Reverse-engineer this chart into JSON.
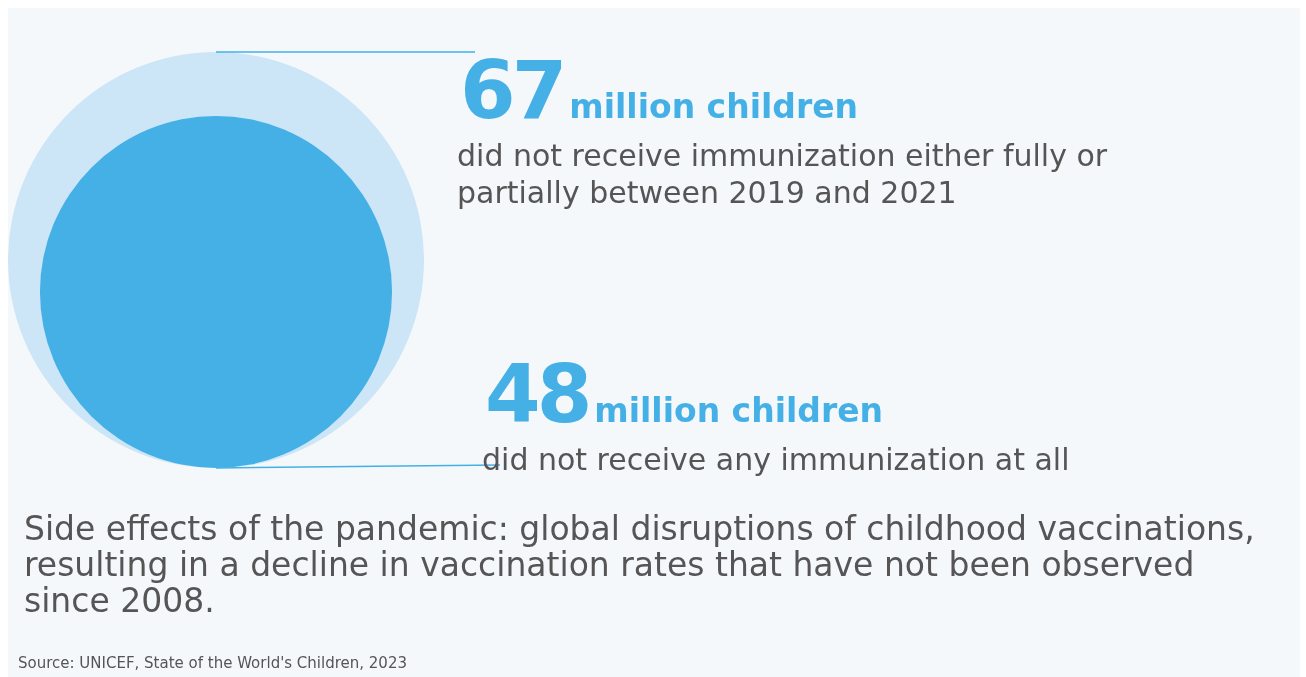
{
  "chart_data": {
    "type": "other",
    "categories": [
      "did not receive immunization either fully or partially between 2019 and 2021",
      "did not receive any immunization at all"
    ],
    "values": [
      67,
      48
    ],
    "colors": [
      "#cde6f7",
      "#45b0e6"
    ],
    "data_labels": true,
    "annotations": [
      "million children",
      "million children",
      "Side effects of the pandemic: global disruptions of childhood vaccinations, resulting in a decline in vaccination rates that have not been observed since 2008.",
      "Source: UNICEF, State of the World's Children, 2023"
    ]
  }
}
